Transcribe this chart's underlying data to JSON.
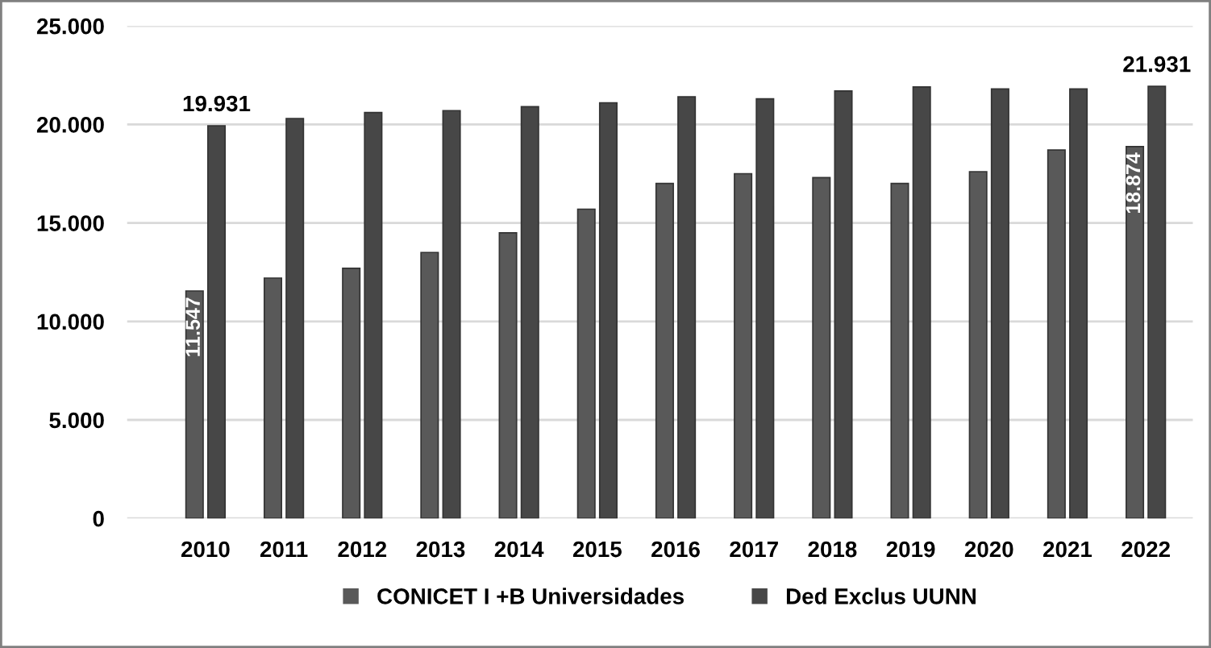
{
  "chart_data": {
    "type": "bar",
    "categories": [
      "2010",
      "2011",
      "2012",
      "2013",
      "2014",
      "2015",
      "2016",
      "2017",
      "2018",
      "2019",
      "2020",
      "2021",
      "2022"
    ],
    "series": [
      {
        "name": "CONICET I +B Universidades",
        "color": "#595959",
        "values": [
          11547,
          12200,
          12700,
          13500,
          14500,
          15700,
          17000,
          17500,
          17300,
          17000,
          17600,
          18700,
          18874
        ],
        "value_labels": [
          "11.547",
          null,
          null,
          null,
          null,
          null,
          null,
          null,
          null,
          null,
          null,
          null,
          "18.874"
        ]
      },
      {
        "name": "Ded Exclus UUNN",
        "color": "#474747",
        "values": [
          19931,
          20300,
          20600,
          20700,
          20900,
          21100,
          21400,
          21300,
          21700,
          21900,
          21800,
          21800,
          21931
        ],
        "value_labels": [
          "19.931",
          null,
          null,
          null,
          null,
          null,
          null,
          null,
          null,
          null,
          null,
          null,
          "21.931"
        ]
      }
    ],
    "ylim": [
      0,
      25000
    ],
    "yticks": [
      {
        "value": 0,
        "label": "0"
      },
      {
        "value": 5000,
        "label": "5.000"
      },
      {
        "value": 10000,
        "label": "10.000"
      },
      {
        "value": 15000,
        "label": "15.000"
      },
      {
        "value": 20000,
        "label": "20.000"
      },
      {
        "value": 25000,
        "label": "25.000"
      }
    ],
    "grid": "y",
    "legend": "bottom"
  }
}
